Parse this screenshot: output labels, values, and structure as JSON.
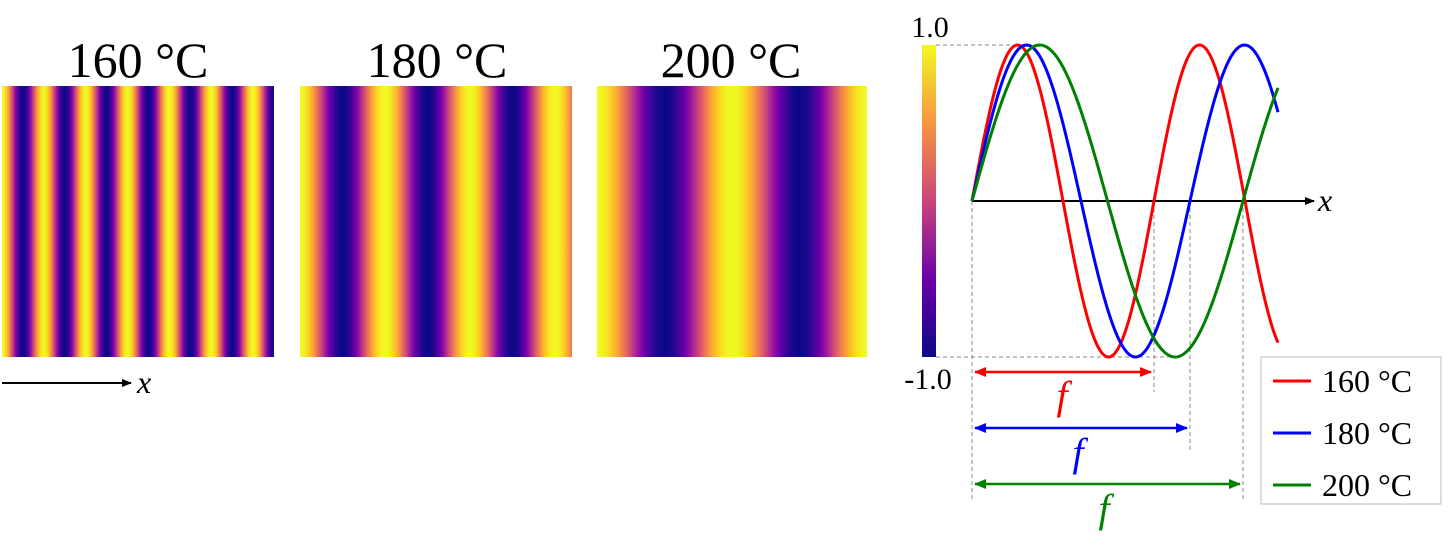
{
  "panels": [
    {
      "title": "160 °C",
      "periods": 6.5
    },
    {
      "title": "180 °C",
      "periods": 3.2
    },
    {
      "title": "200 °C",
      "periods": 2.0
    }
  ],
  "x_axis_label": "x",
  "colorbar": {
    "max_label": "1.0",
    "min_label": "-1.0",
    "min": -1.0,
    "max": 1.0
  },
  "period_label": "f",
  "colors": {
    "c160": "#ff0000",
    "c180": "#0000ff",
    "c200": "#008000",
    "axis": "#000000"
  },
  "chart_data": {
    "type": "line",
    "title": "",
    "xlabel": "x",
    "ylabel": "",
    "ylim": [
      -1.0,
      1.0
    ],
    "series": [
      {
        "name": "160 °C",
        "period_frac": 0.6,
        "zero_crossing_x": "T160"
      },
      {
        "name": "180 °C",
        "period_frac": 0.718,
        "zero_crossing_x": "T180"
      },
      {
        "name": "200 °C",
        "period_frac": 0.896,
        "zero_crossing_x": "T200"
      }
    ],
    "legend": {
      "placement": "bottom-right",
      "entries": [
        "160 °C",
        "180 °C",
        "200 °C"
      ]
    }
  }
}
